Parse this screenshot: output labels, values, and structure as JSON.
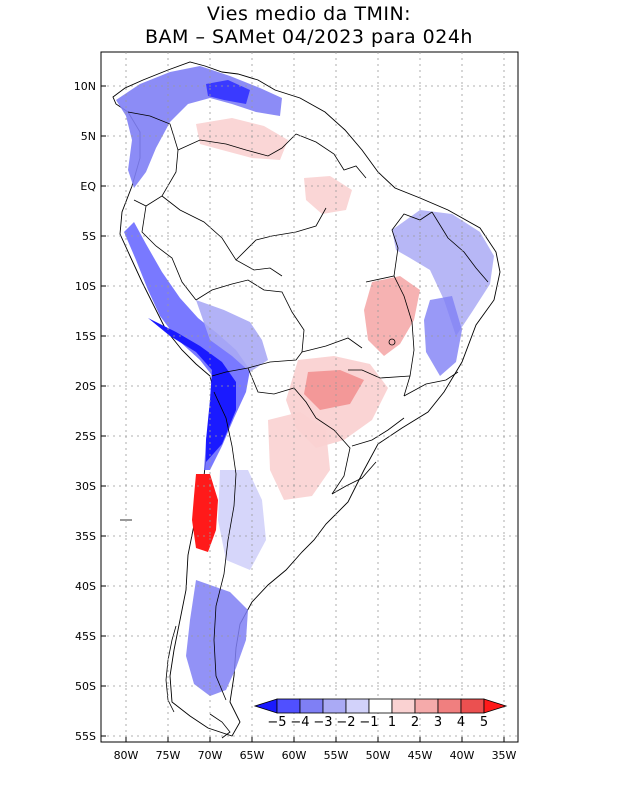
{
  "title": {
    "line1": "Vies medio da TMIN:",
    "line2": "BAM – SAMet 04/2023  para 024h"
  },
  "map": {
    "region": "South America",
    "y_axis_labels": [
      "10N",
      "5N",
      "EQ",
      "5S",
      "10S",
      "15S",
      "20S",
      "25S",
      "30S",
      "35S",
      "40S",
      "45S",
      "50S",
      "55S"
    ],
    "x_axis_labels": [
      "80W",
      "75W",
      "70W",
      "65W",
      "60W",
      "55W",
      "50W",
      "45W",
      "40W",
      "35W"
    ]
  },
  "legend": {
    "labels": [
      "−5",
      "−4",
      "−3",
      "−2",
      "−1",
      "1",
      "2",
      "3",
      "4",
      "5"
    ],
    "colors": [
      "#1a1aff",
      "#5050ff",
      "#7f7ff5",
      "#aaaaf5",
      "#d2d2fa",
      "#ffffff",
      "#fad2d2",
      "#f5aaaa",
      "#f07f7f",
      "#eb5050",
      "#ff1a1a"
    ]
  },
  "colors": {
    "land_white": "#ffffff",
    "grid": "#999999",
    "border": "#000000"
  }
}
